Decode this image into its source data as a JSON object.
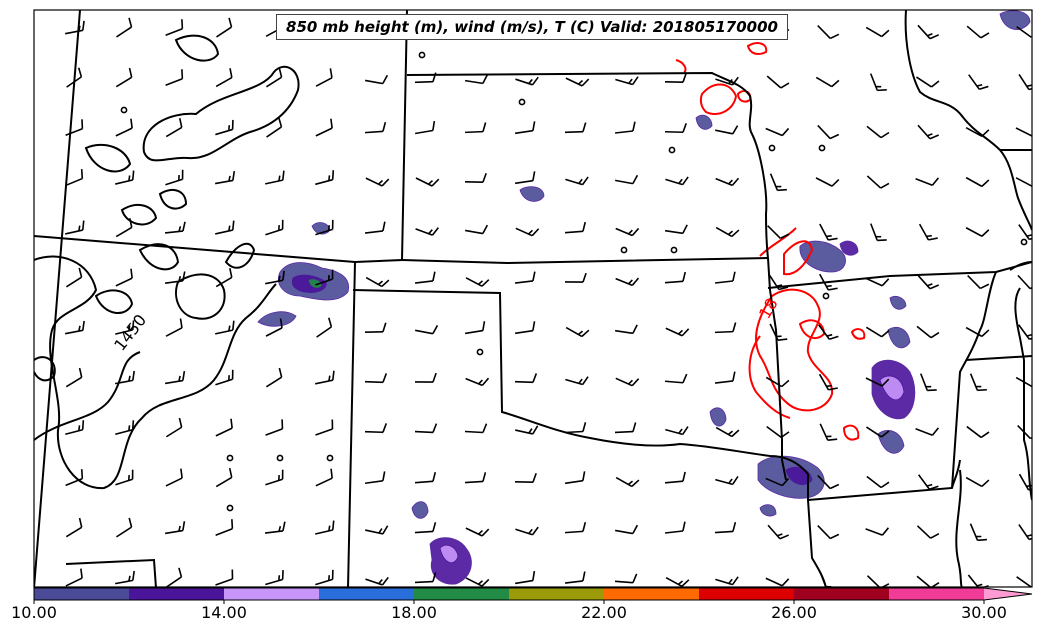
{
  "title": "850 mb height (m), wind (m/s), T (C) Valid: 201805170000",
  "contour_labels": {
    "height": "1450",
    "temperature": "18"
  },
  "colorbar": {
    "min": 10,
    "max": 30,
    "step": 2,
    "extend": "max",
    "tick_labels": [
      "10.00",
      "14.00",
      "18.00",
      "22.00",
      "26.00",
      "30.00"
    ],
    "colors": [
      "#4a4a96",
      "#4a149b",
      "#c896fa",
      "#2a6edc",
      "#228b46",
      "#9b9b0a",
      "#ff6a00",
      "#dc0000",
      "#a00020",
      "#f03c96",
      "#ff9bd2"
    ]
  },
  "styles": {
    "state_border_color": "#000000",
    "height_contour_color": "#000000",
    "temperature_contour_color": "#ff0000",
    "wind_barb_color": "#000000"
  }
}
